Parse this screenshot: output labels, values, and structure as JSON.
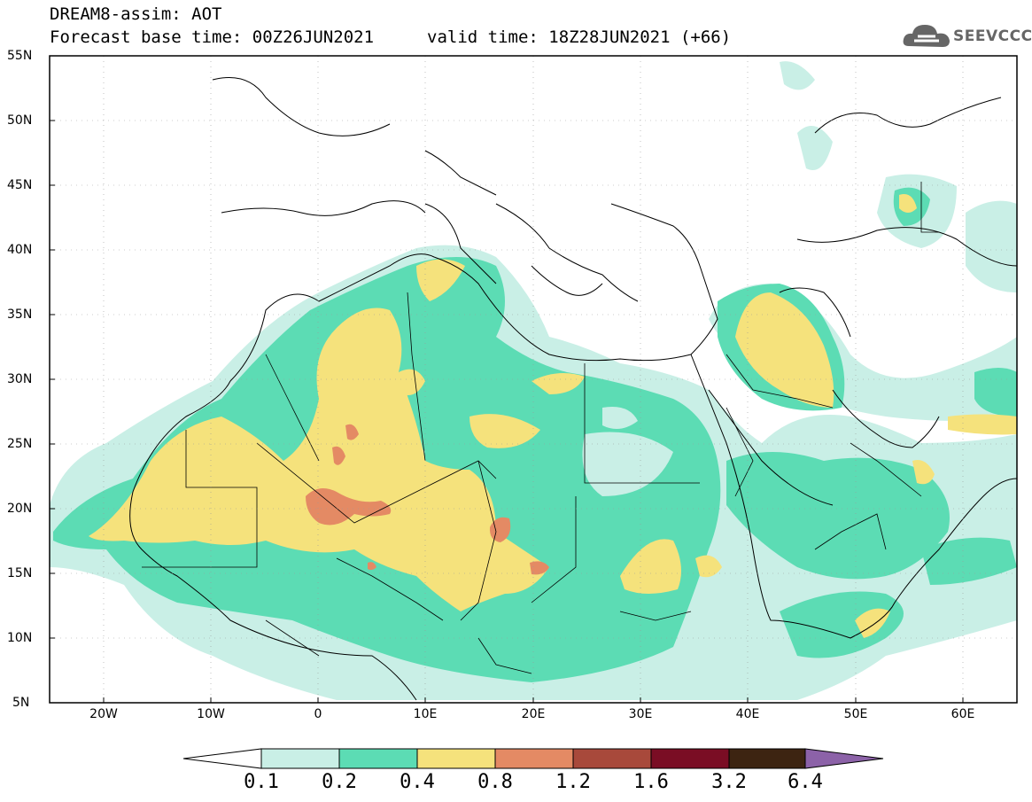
{
  "title": {
    "line1": "DREAM8-assim: AOT",
    "line2": "Forecast base time: 00Z26JUN2021",
    "valid": "valid time: 18Z28JUN2021 (+66)"
  },
  "brand": {
    "name": "SEEVCCC",
    "icon": "cloud-logo-icon"
  },
  "axes": {
    "lat_labels": [
      "55N",
      "50N",
      "45N",
      "40N",
      "35N",
      "30N",
      "25N",
      "20N",
      "15N",
      "10N",
      "5N"
    ],
    "lon_labels": [
      "20W",
      "10W",
      "0",
      "10E",
      "20E",
      "30E",
      "40E",
      "50E",
      "60E"
    ]
  },
  "colorbar": {
    "labels": [
      "0.1",
      "0.2",
      "0.4",
      "0.8",
      "1.2",
      "1.6",
      "3.2",
      "6.4"
    ],
    "colors": [
      "#ffffff",
      "#c9efe6",
      "#5cdcb4",
      "#f5e27c",
      "#e48a64",
      "#a8493b",
      "#7a0d24",
      "#3d2411",
      "#8c62a8"
    ]
  }
}
